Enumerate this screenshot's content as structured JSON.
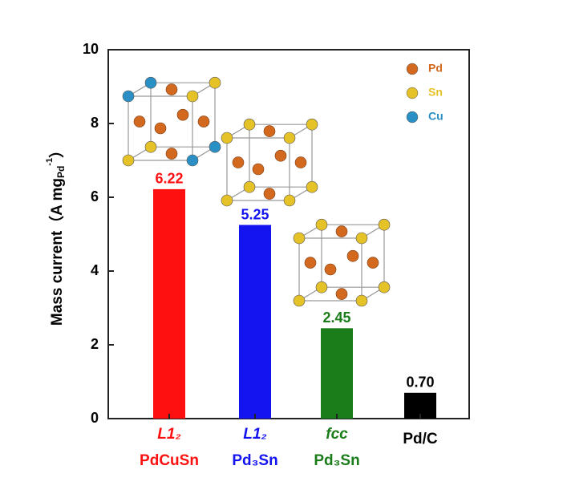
{
  "chart_data": {
    "type": "bar",
    "ylabel_parts": [
      "Mass current（A mg",
      "Pd",
      "-1",
      "）"
    ],
    "categories": [
      "PdCuSn",
      "Pd₃Sn",
      "Pd₃Sn",
      "Pd/C"
    ],
    "category_phases": [
      "L1₂",
      "L1₂",
      "fcc"
    ],
    "values": [
      6.22,
      5.25,
      2.45,
      0.7
    ],
    "value_labels": [
      "6.22",
      "5.25",
      "2.45",
      "0.70"
    ],
    "colors": [
      "#ff1010",
      "#1414f0",
      "#1a7d1a",
      "#000000"
    ],
    "ylim": [
      0,
      10
    ],
    "yticks": [
      0,
      2,
      4,
      6,
      8,
      10
    ],
    "legend": [
      {
        "name": "Pd",
        "color": "#d2691e"
      },
      {
        "name": "Sn",
        "color": "#e6c229"
      },
      {
        "name": "Cu",
        "color": "#2a8fc4"
      }
    ]
  }
}
